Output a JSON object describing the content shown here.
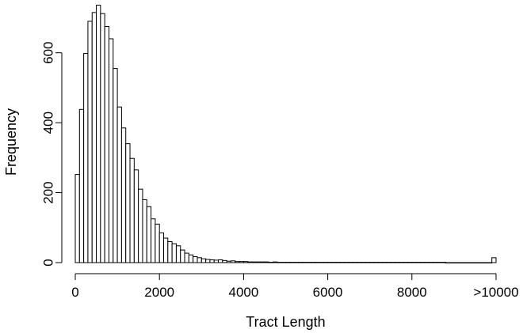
{
  "chart_data": {
    "type": "bar",
    "title": "",
    "xlabel": "Tract Length",
    "ylabel": "Frequency",
    "x_ticks": [
      {
        "value": 0,
        "label": "0"
      },
      {
        "value": 2000,
        "label": "2000"
      },
      {
        "value": 4000,
        "label": "4000"
      },
      {
        "value": 6000,
        "label": "6000"
      },
      {
        "value": 8000,
        "label": "8000"
      },
      {
        "value": 10000,
        "label": ">10000"
      }
    ],
    "y_ticks": [
      {
        "value": 0,
        "label": "0"
      },
      {
        "value": 200,
        "label": "200"
      },
      {
        "value": 400,
        "label": "400"
      },
      {
        "value": 600,
        "label": "600"
      }
    ],
    "xlim": [
      0,
      10000
    ],
    "ylim": [
      0,
      735
    ],
    "bin_width": 100,
    "bin_starts": [
      0,
      100,
      200,
      300,
      400,
      500,
      600,
      700,
      800,
      900,
      1000,
      1100,
      1200,
      1300,
      1400,
      1500,
      1600,
      1700,
      1800,
      1900,
      2000,
      2100,
      2200,
      2300,
      2400,
      2500,
      2600,
      2700,
      2800,
      2900,
      3000,
      3100,
      3200,
      3300,
      3400,
      3500,
      3600,
      3700,
      3800,
      3900,
      4000,
      4100,
      4200,
      4300,
      4400,
      4500,
      4600,
      4700,
      4800,
      4900,
      5000,
      5100,
      5200,
      5300,
      5400,
      5500,
      5600,
      5700,
      5800,
      5900,
      6000,
      6100,
      6200,
      6300,
      6400,
      6500,
      6600,
      6700,
      6800,
      6900,
      7000,
      7100,
      7200,
      7300,
      7400,
      7500,
      7600,
      7700,
      7800,
      7900,
      8000,
      8100,
      8200,
      8300,
      8400,
      8500,
      8600,
      8700,
      8800,
      8900,
      9000,
      9100,
      9200,
      9300,
      9400,
      9500,
      9600,
      9700,
      9800,
      9900
    ],
    "values": [
      252,
      438,
      598,
      690,
      715,
      736,
      712,
      675,
      640,
      555,
      445,
      385,
      340,
      298,
      265,
      210,
      180,
      160,
      125,
      110,
      85,
      70,
      60,
      54,
      48,
      36,
      27,
      22,
      17,
      14,
      11,
      9,
      8,
      7,
      8,
      6,
      4,
      5,
      3,
      3,
      3,
      2,
      2,
      2,
      2,
      2,
      1,
      2,
      1,
      1,
      1,
      1,
      1,
      1,
      1,
      1,
      1,
      1,
      1,
      1,
      1,
      1,
      1,
      1,
      1,
      1,
      1,
      1,
      1,
      1,
      1,
      1,
      1,
      1,
      1,
      1,
      1,
      1,
      1,
      1,
      1,
      1,
      1,
      1,
      1,
      1,
      1,
      1,
      0,
      0,
      0,
      0,
      0,
      0,
      0,
      0,
      0,
      0,
      0,
      14
    ],
    "colors": {
      "bar_fill": "#ffffff",
      "bar_stroke": "#000000"
    }
  }
}
